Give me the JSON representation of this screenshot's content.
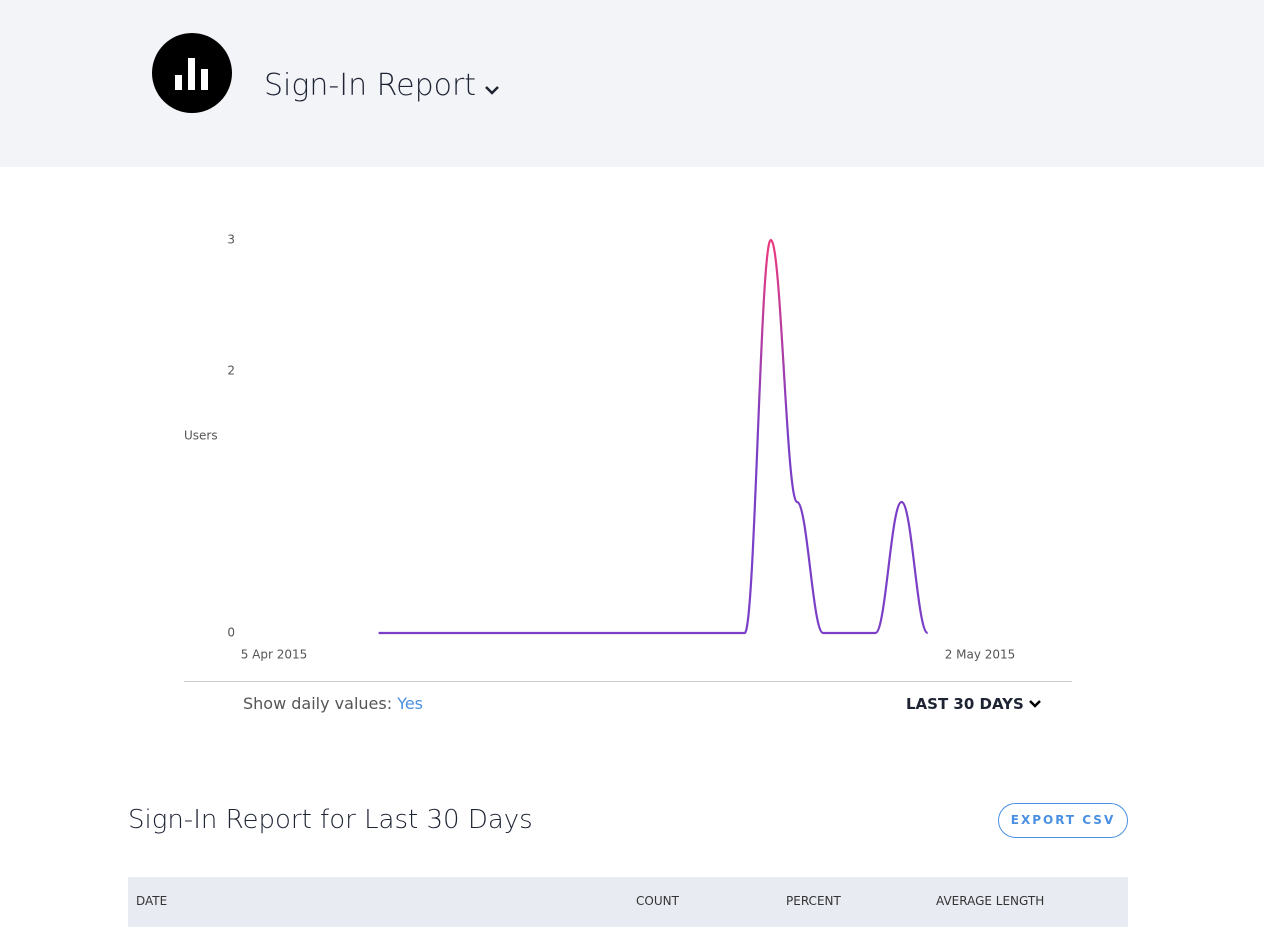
{
  "header": {
    "title": "Sign-In Report"
  },
  "chart_data": {
    "type": "line",
    "y_label": "Users",
    "x": [
      "2015-04-09",
      "2015-04-10",
      "2015-04-11",
      "2015-04-12",
      "2015-04-13",
      "2015-04-14",
      "2015-04-15",
      "2015-04-16",
      "2015-04-17",
      "2015-04-18",
      "2015-04-19",
      "2015-04-20",
      "2015-04-21",
      "2015-04-22",
      "2015-04-23",
      "2015-04-24",
      "2015-04-25",
      "2015-04-26",
      "2015-04-27",
      "2015-04-28",
      "2015-04-29",
      "2015-04-30"
    ],
    "series": [
      {
        "name": "Users",
        "color": [
          "#ec3a7e",
          "#7a3fc6"
        ],
        "values": [
          0,
          0,
          0,
          0,
          0,
          0,
          0,
          0,
          0,
          0,
          0,
          0,
          0,
          0,
          0,
          3,
          1,
          0,
          0,
          0,
          1,
          0
        ]
      }
    ],
    "xlim": [
      "2015-04-05",
      "2015-05-02"
    ],
    "xticks": [
      {
        "value": "2015-04-05",
        "label": "5 Apr 2015"
      },
      {
        "value": "2015-05-02",
        "label": "2 May 2015"
      }
    ],
    "ylim": [
      0,
      3
    ],
    "yticks": [
      0,
      2,
      3
    ],
    "grid": false
  },
  "controls": {
    "daily_label": "Show daily values:",
    "daily_value": "Yes",
    "range": "LAST 30 DAYS"
  },
  "report": {
    "title": "Sign-In Report for Last 30 Days",
    "export": "EXPORT CSV"
  },
  "table": {
    "columns": [
      "DATE",
      "COUNT",
      "PERCENT",
      "AVERAGE LENGTH"
    ]
  }
}
